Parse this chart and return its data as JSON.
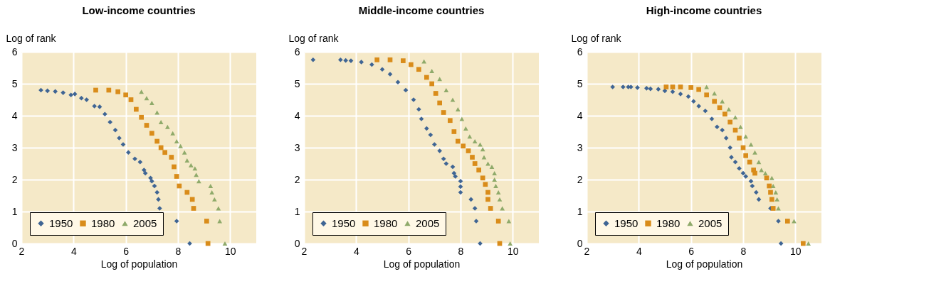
{
  "chart_data": [
    {
      "type": "scatter",
      "title": "Low-income countries",
      "xlabel": "Log of population",
      "ylabel": "Log of rank",
      "xlim": [
        2,
        11
      ],
      "ylim": [
        0,
        6
      ],
      "xticks": [
        2,
        4,
        6,
        8,
        10
      ],
      "yticks": [
        0,
        1,
        2,
        3,
        4,
        5,
        6
      ],
      "grid": true,
      "legend": "bottom left",
      "series": [
        {
          "name": "1950",
          "color": "#3f6594",
          "marker": "diamond",
          "x": [
            2.75,
            3.0,
            3.3,
            3.6,
            3.9,
            4.05,
            4.3,
            4.5,
            4.8,
            5.0,
            5.2,
            5.4,
            5.6,
            5.75,
            5.9,
            6.1,
            6.35,
            6.55,
            6.7,
            6.75,
            6.95,
            7.0,
            7.1,
            7.2,
            7.25,
            7.3,
            7.95,
            8.45
          ],
          "values": [
            4.8,
            4.78,
            4.76,
            4.72,
            4.65,
            4.68,
            4.55,
            4.5,
            4.3,
            4.28,
            4.05,
            3.8,
            3.55,
            3.3,
            3.1,
            2.85,
            2.65,
            2.55,
            2.3,
            2.2,
            2.05,
            1.95,
            1.8,
            1.6,
            1.38,
            1.1,
            0.7,
            0
          ]
        },
        {
          "name": "1980",
          "color": "#d98c1a",
          "marker": "square",
          "x": [
            4.85,
            5.35,
            5.7,
            6.0,
            6.2,
            6.4,
            6.6,
            6.8,
            7.0,
            7.2,
            7.35,
            7.5,
            7.75,
            7.85,
            7.95,
            8.05,
            8.35,
            8.55,
            8.6,
            9.1,
            9.15
          ],
          "values": [
            4.8,
            4.8,
            4.75,
            4.65,
            4.5,
            4.2,
            3.95,
            3.7,
            3.45,
            3.2,
            3.0,
            2.85,
            2.7,
            2.4,
            2.1,
            1.8,
            1.6,
            1.38,
            1.1,
            0.7,
            0
          ]
        },
        {
          "name": "2005",
          "color": "#8faa6a",
          "marker": "triangle",
          "x": [
            6.6,
            6.8,
            7.0,
            7.2,
            7.35,
            7.6,
            7.8,
            7.95,
            8.1,
            8.25,
            8.35,
            8.5,
            8.65,
            8.7,
            8.8,
            9.25,
            9.3,
            9.4,
            9.55,
            9.6,
            9.8
          ],
          "values": [
            4.75,
            4.55,
            4.4,
            4.1,
            3.8,
            3.65,
            3.45,
            3.2,
            3.05,
            2.85,
            2.6,
            2.45,
            2.35,
            2.15,
            1.95,
            1.8,
            1.6,
            1.38,
            1.1,
            0.7,
            0
          ]
        }
      ]
    },
    {
      "type": "scatter",
      "title": "Middle-income countries",
      "xlabel": "Log of population",
      "ylabel": "Log of rank",
      "xlim": [
        2,
        11
      ],
      "ylim": [
        0,
        6
      ],
      "xticks": [
        2,
        4,
        6,
        8,
        10
      ],
      "yticks": [
        0,
        1,
        2,
        3,
        4,
        5,
        6
      ],
      "grid": true,
      "legend": "bottom left",
      "series": [
        {
          "name": "1950",
          "color": "#3f6594",
          "marker": "diamond",
          "x": [
            2.35,
            3.4,
            3.6,
            3.8,
            4.2,
            4.6,
            5.0,
            5.3,
            5.6,
            5.9,
            6.2,
            6.4,
            6.5,
            6.7,
            6.85,
            7.0,
            7.2,
            7.35,
            7.45,
            7.7,
            7.75,
            7.8,
            8.0,
            8.0,
            8.0,
            8.4,
            8.55,
            8.6,
            8.75
          ],
          "values": [
            5.75,
            5.75,
            5.73,
            5.72,
            5.68,
            5.6,
            5.45,
            5.3,
            5.05,
            4.8,
            4.5,
            4.2,
            3.9,
            3.6,
            3.4,
            3.1,
            2.9,
            2.65,
            2.5,
            2.4,
            2.2,
            2.1,
            1.95,
            1.78,
            1.6,
            1.38,
            1.1,
            0.7,
            0
          ]
        },
        {
          "name": "1980",
          "color": "#d98c1a",
          "marker": "square",
          "x": [
            4.8,
            5.3,
            5.8,
            6.1,
            6.4,
            6.7,
            6.9,
            7.05,
            7.2,
            7.35,
            7.6,
            7.75,
            7.9,
            8.1,
            8.3,
            8.45,
            8.55,
            8.7,
            8.85,
            8.95,
            9.05,
            9.05,
            9.15,
            9.45,
            9.5
          ],
          "values": [
            5.75,
            5.75,
            5.72,
            5.6,
            5.45,
            5.2,
            5.0,
            4.7,
            4.4,
            4.1,
            3.85,
            3.5,
            3.2,
            3.05,
            2.9,
            2.7,
            2.5,
            2.3,
            2.05,
            1.85,
            1.6,
            1.38,
            1.1,
            0.7,
            0
          ]
        },
        {
          "name": "2005",
          "color": "#8faa6a",
          "marker": "triangle",
          "x": [
            6.6,
            6.9,
            7.2,
            7.45,
            7.7,
            7.9,
            8.05,
            8.2,
            8.35,
            8.55,
            8.75,
            8.85,
            8.9,
            9.05,
            9.2,
            9.3,
            9.3,
            9.35,
            9.45,
            9.5,
            9.6,
            9.85,
            9.9
          ],
          "values": [
            5.7,
            5.4,
            5.15,
            4.8,
            4.5,
            4.2,
            3.9,
            3.6,
            3.35,
            3.2,
            3.1,
            2.95,
            2.7,
            2.5,
            2.4,
            2.2,
            2.0,
            1.8,
            1.6,
            1.38,
            1.1,
            0.7,
            0
          ]
        }
      ]
    },
    {
      "type": "scatter",
      "title": "High-income countries",
      "xlabel": "Log of population",
      "ylabel": "Log of rank",
      "xlim": [
        2,
        11
      ],
      "ylim": [
        0,
        6
      ],
      "xticks": [
        2,
        4,
        6,
        8,
        10
      ],
      "yticks": [
        0,
        1,
        2,
        3,
        4,
        5,
        6
      ],
      "grid": true,
      "legend": "bottom left",
      "series": [
        {
          "name": "1950",
          "color": "#3f6594",
          "marker": "diamond",
          "x": [
            3.0,
            3.4,
            3.6,
            3.7,
            3.95,
            4.3,
            4.45,
            4.75,
            5.0,
            5.3,
            5.6,
            5.9,
            6.1,
            6.3,
            6.55,
            6.8,
            7.0,
            7.2,
            7.35,
            7.5,
            7.55,
            7.7,
            7.85,
            8.0,
            8.1,
            8.3,
            8.35,
            8.5,
            8.6,
            9.05,
            9.35,
            9.45
          ],
          "values": [
            4.9,
            4.9,
            4.9,
            4.9,
            4.88,
            4.86,
            4.84,
            4.83,
            4.78,
            4.75,
            4.68,
            4.6,
            4.45,
            4.3,
            4.15,
            3.9,
            3.65,
            3.55,
            3.3,
            3.0,
            2.7,
            2.55,
            2.35,
            2.2,
            2.1,
            1.95,
            1.8,
            1.6,
            1.38,
            1.1,
            0.7,
            0
          ]
        },
        {
          "name": "1980",
          "color": "#d98c1a",
          "marker": "square",
          "x": [
            5.05,
            5.3,
            5.6,
            6.0,
            6.3,
            6.6,
            6.9,
            7.1,
            7.3,
            7.5,
            7.7,
            7.85,
            8.0,
            8.1,
            8.25,
            8.4,
            8.45,
            8.9,
            9.0,
            9.05,
            9.1,
            9.15,
            9.7,
            10.3
          ],
          "values": [
            4.9,
            4.9,
            4.9,
            4.88,
            4.82,
            4.65,
            4.45,
            4.25,
            4.05,
            3.8,
            3.55,
            3.3,
            3.0,
            2.75,
            2.55,
            2.3,
            2.2,
            2.05,
            1.8,
            1.6,
            1.38,
            1.1,
            0.7,
            0
          ]
        },
        {
          "name": "2005",
          "color": "#8faa6a",
          "marker": "triangle",
          "x": [
            6.6,
            6.9,
            7.2,
            7.45,
            7.7,
            7.9,
            8.1,
            8.3,
            8.45,
            8.6,
            8.7,
            8.85,
            9.1,
            9.15,
            9.25,
            9.3,
            9.35,
            9.95,
            10.5
          ],
          "values": [
            4.9,
            4.7,
            4.45,
            4.2,
            3.95,
            3.65,
            3.35,
            3.1,
            2.85,
            2.55,
            2.3,
            2.2,
            2.05,
            1.8,
            1.6,
            1.38,
            1.1,
            0.7,
            0
          ]
        }
      ]
    }
  ]
}
